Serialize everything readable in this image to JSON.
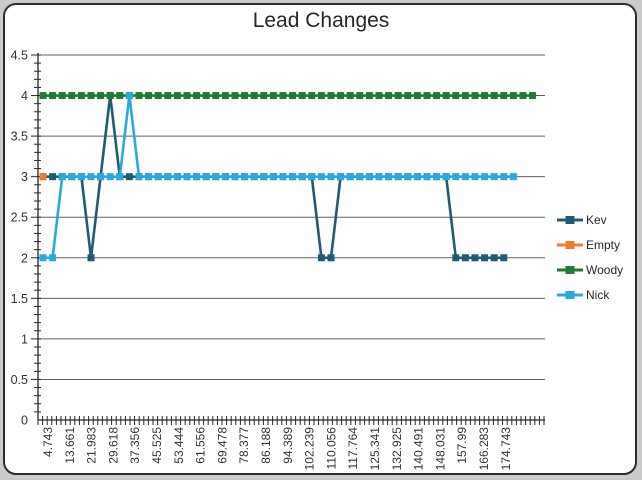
{
  "chart_data": {
    "type": "line",
    "title": "Lead Changes",
    "legend_position": "right",
    "grid": true,
    "y_axis": {
      "min": 0,
      "max": 4.5,
      "major_step": 0.5,
      "minor_step": 0.1,
      "tick_labels": [
        "4.5",
        "4",
        "3.5",
        "3",
        "2.5",
        "2",
        "1.5",
        "1",
        "0.5",
        "0"
      ]
    },
    "x_axis": {
      "tick_labels": [
        "4.743",
        "13.661",
        "21.983",
        "29.618",
        "37.356",
        "45.525",
        "53.444",
        "61.556",
        "69.478",
        "78.377",
        "86.188",
        "94.389",
        "102.239",
        "110.056",
        "117.764",
        "125.341",
        "132.925",
        "140.491",
        "148.031",
        "157.99",
        "166.283",
        "174.743"
      ]
    },
    "series": [
      {
        "name": "Kev",
        "color": "#1F5C73",
        "values": [
          3,
          3,
          3,
          3,
          3,
          2,
          3,
          4,
          3,
          3,
          3,
          3,
          3,
          3,
          3,
          3,
          3,
          3,
          3,
          3,
          3,
          3,
          3,
          3,
          3,
          3,
          3,
          3,
          3,
          2,
          2,
          3,
          3,
          3,
          3,
          3,
          3,
          3,
          3,
          3,
          3,
          3,
          3,
          2,
          2,
          2,
          2,
          2,
          2
        ]
      },
      {
        "name": "Empty",
        "color": "#ED7D31",
        "values": [
          3
        ]
      },
      {
        "name": "Woody",
        "color": "#1E7B31",
        "values": [
          4,
          4,
          4,
          4,
          4,
          4,
          4,
          4,
          4,
          4,
          4,
          4,
          4,
          4,
          4,
          4,
          4,
          4,
          4,
          4,
          4,
          4,
          4,
          4,
          4,
          4,
          4,
          4,
          4,
          4,
          4,
          4,
          4,
          4,
          4,
          4,
          4,
          4,
          4,
          4,
          4,
          4,
          4,
          4,
          4,
          4,
          4,
          4,
          4,
          4,
          4,
          4
        ]
      },
      {
        "name": "Nick",
        "color": "#29A9DC",
        "values": [
          2,
          2,
          3,
          3,
          3,
          3,
          3,
          3,
          3,
          4,
          3,
          3,
          3,
          3,
          3,
          3,
          3,
          3,
          3,
          3,
          3,
          3,
          3,
          3,
          3,
          3,
          3,
          3,
          3,
          3,
          3,
          3,
          3,
          3,
          3,
          3,
          3,
          3,
          3,
          3,
          3,
          3,
          3,
          3,
          3,
          3,
          3,
          3,
          3,
          3
        ]
      }
    ]
  }
}
